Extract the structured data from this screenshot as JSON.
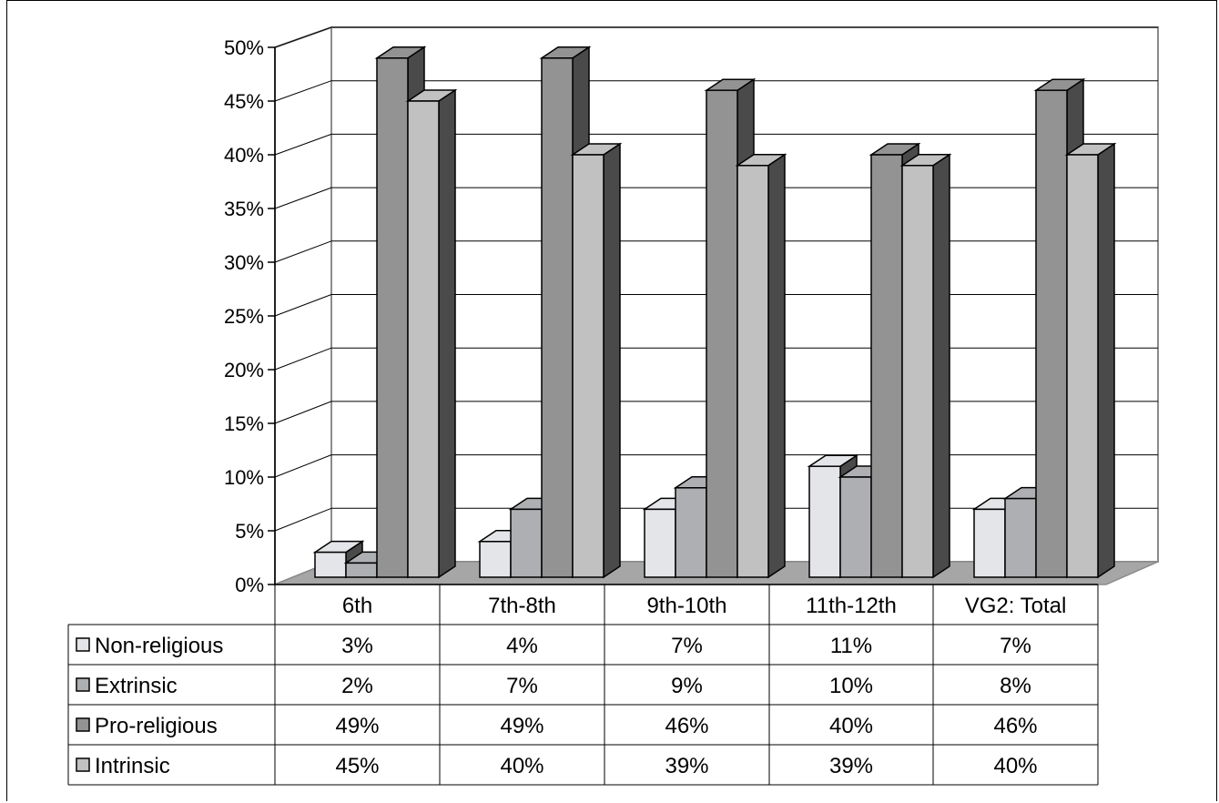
{
  "chart_data": {
    "type": "bar",
    "style": "3d-clustered-column-with-data-table",
    "categories": [
      "6th",
      "7th-8th",
      "9th-10th",
      "11th-12th",
      "VG2: Total"
    ],
    "series": [
      {
        "name": "Non-religious",
        "values": [
          3,
          4,
          7,
          11,
          7
        ],
        "labels": [
          "3%",
          "4%",
          "7%",
          "11%",
          "7%"
        ],
        "color": "#e4e5e8"
      },
      {
        "name": "Extrinsic",
        "values": [
          2,
          7,
          9,
          10,
          8
        ],
        "labels": [
          "2%",
          "7%",
          "9%",
          "10%",
          "8%"
        ],
        "color": "#aeafb2"
      },
      {
        "name": "Pro-religious",
        "values": [
          49,
          49,
          46,
          40,
          46
        ],
        "labels": [
          "49%",
          "49%",
          "46%",
          "40%",
          "46%"
        ],
        "color": "#939393"
      },
      {
        "name": "Intrinsic",
        "values": [
          45,
          40,
          39,
          39,
          40
        ],
        "labels": [
          "45%",
          "40%",
          "39%",
          "39%",
          "40%"
        ],
        "color": "#c1c1c1"
      }
    ],
    "y_ticks": [
      "0%",
      "5%",
      "10%",
      "15%",
      "20%",
      "25%",
      "30%",
      "35%",
      "40%",
      "45%",
      "50%"
    ],
    "ylim": [
      0,
      50
    ],
    "grid": true,
    "legend": "data-table-left"
  }
}
